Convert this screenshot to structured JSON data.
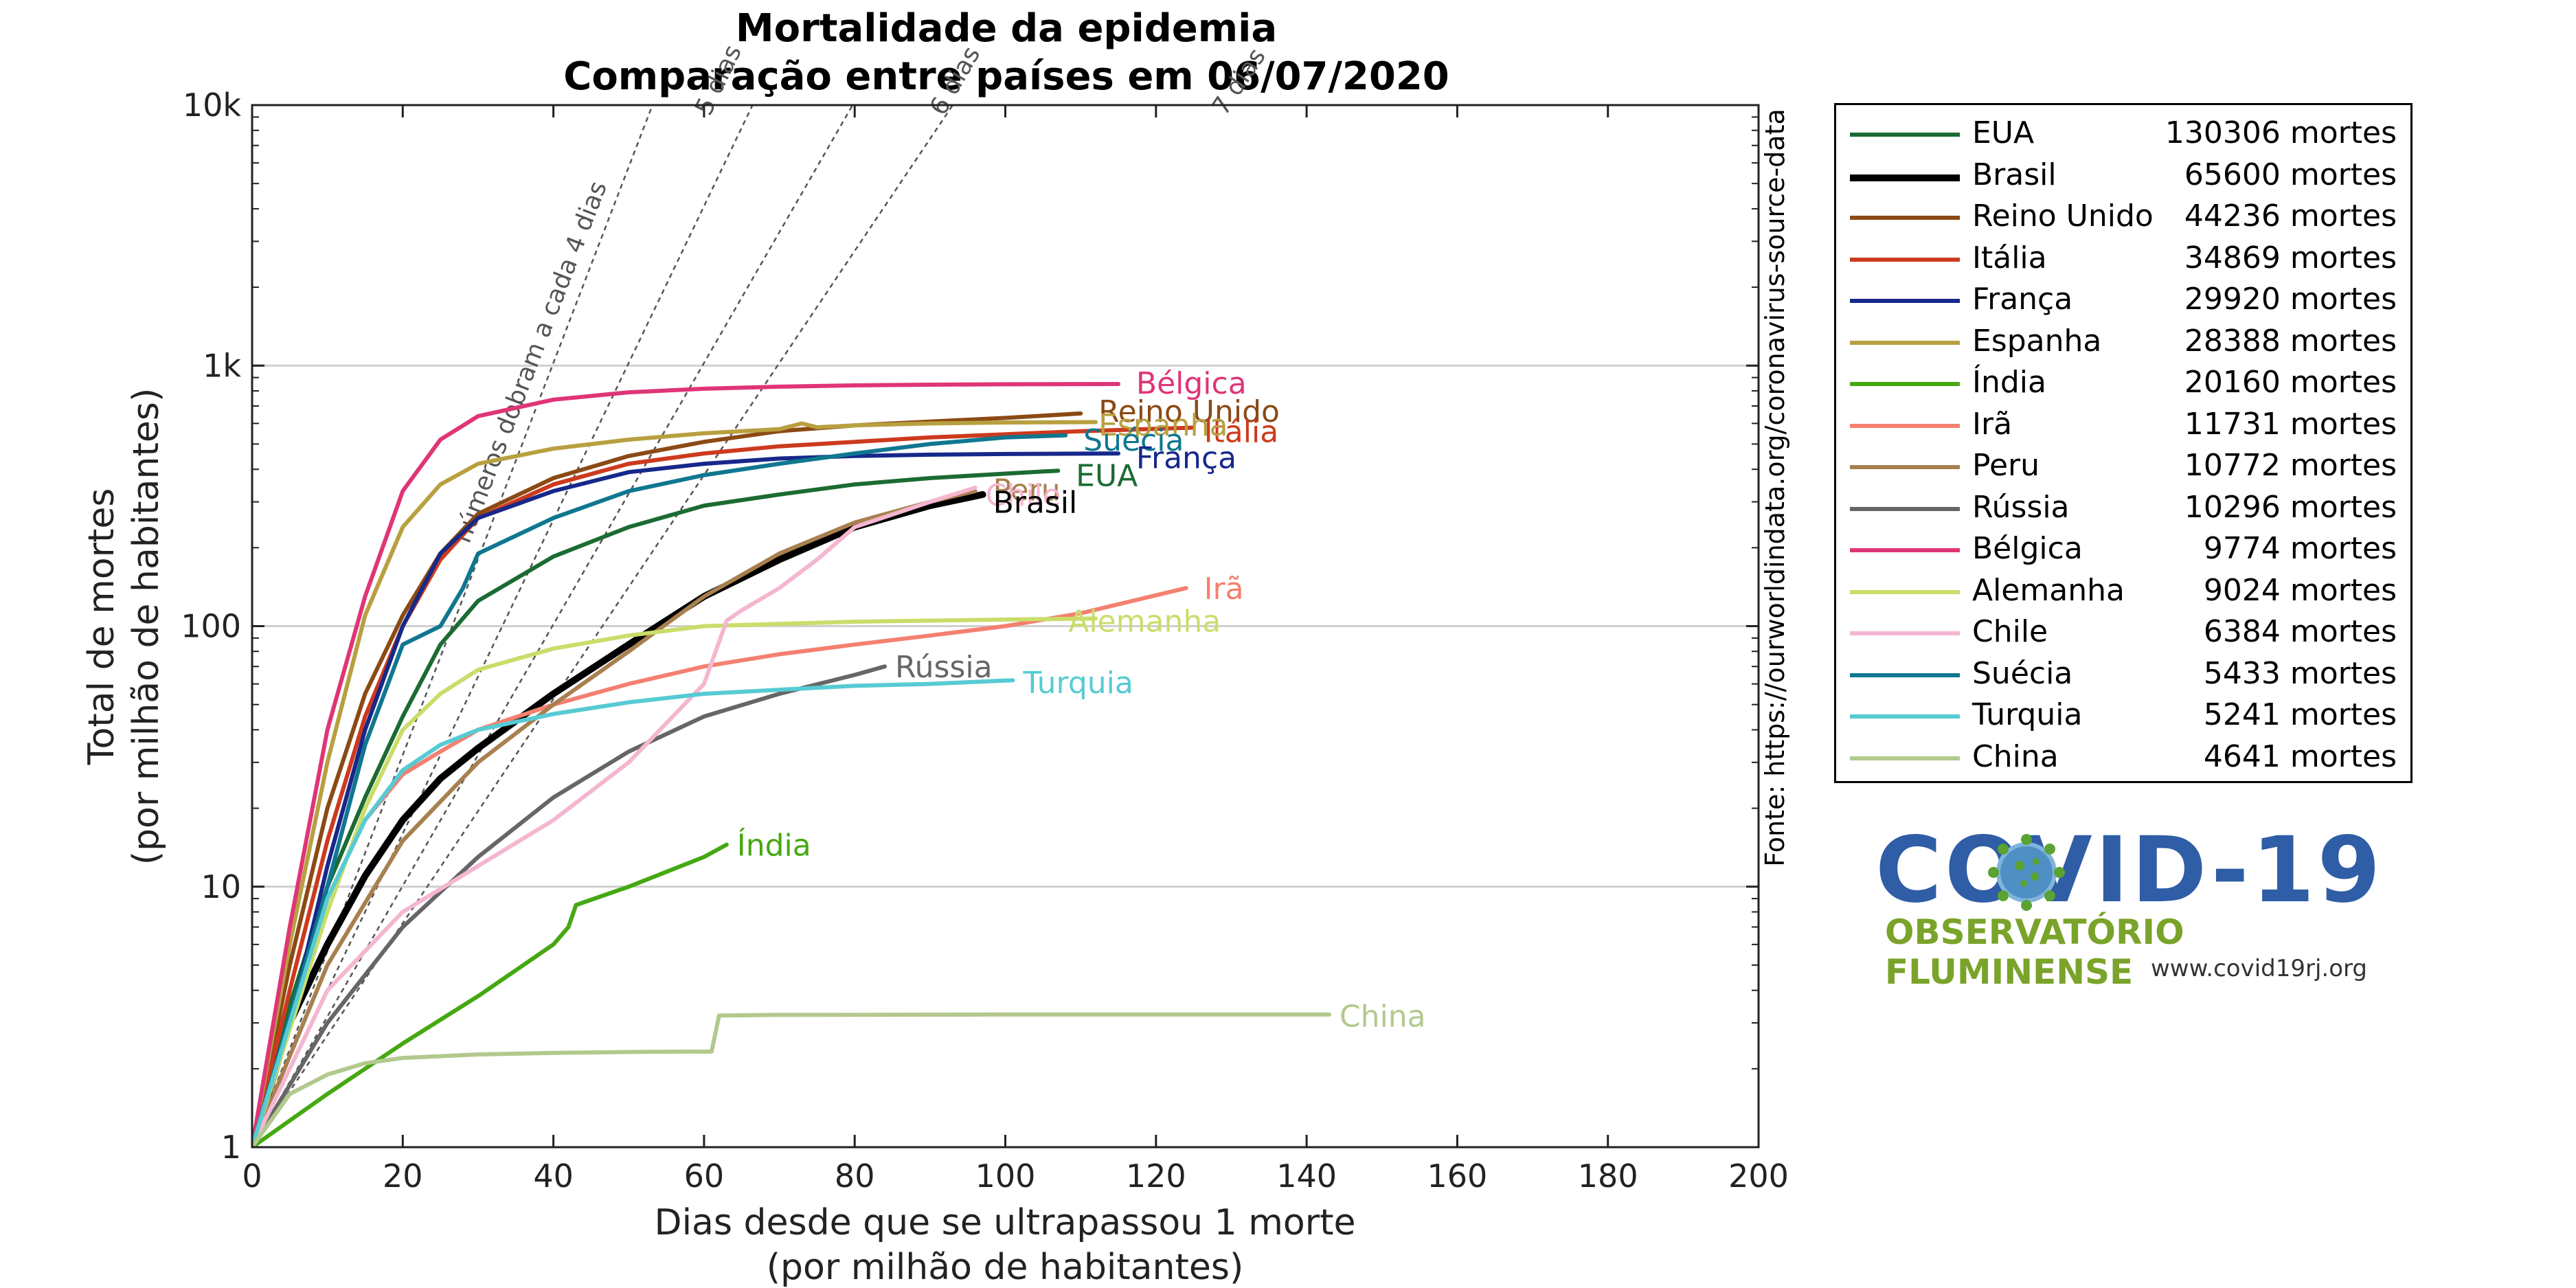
{
  "chart_data": {
    "type": "line",
    "title": "Mortalidade da epidemia",
    "subtitle": "Comparação entre países em 06/07/2020",
    "xlabel": "Dias desde que se ultrapassou 1 morte",
    "xlabel2": "(por milhão de habitantes)",
    "ylabel": "Total de mortes",
    "ylabel2": "(por milhão de habitantes)",
    "source": "Fonte: https://ourworldindata.org/coronavirus-source-data",
    "xlim": [
      0,
      200
    ],
    "ylim": [
      1,
      10000
    ],
    "yscale": "log",
    "xticks": [
      "0",
      "20",
      "40",
      "60",
      "80",
      "100",
      "120",
      "140",
      "160",
      "180",
      "200"
    ],
    "yticks": [
      {
        "value": 1,
        "label": "1"
      },
      {
        "value": 10,
        "label": "10"
      },
      {
        "value": 100,
        "label": "100"
      },
      {
        "value": 1000,
        "label": "1k"
      },
      {
        "value": 10000,
        "label": "10k"
      }
    ],
    "grid": "horizontal",
    "legend_position": "outside-right",
    "doubling_lines": [
      {
        "days": 4,
        "label": "números dobram a cada 4 dias"
      },
      {
        "days": 5,
        "label": "5 dias"
      },
      {
        "days": 6,
        "label": "6 dias"
      },
      {
        "days": 7,
        "label": "7 dias"
      }
    ],
    "series": [
      {
        "name": "EUA",
        "deaths": "130306 mortes",
        "color": "#1b6b32",
        "width": 6,
        "points": [
          [
            0,
            1
          ],
          [
            5,
            3.5
          ],
          [
            10,
            10
          ],
          [
            15,
            22
          ],
          [
            20,
            45
          ],
          [
            25,
            85
          ],
          [
            30,
            125
          ],
          [
            40,
            185
          ],
          [
            50,
            240
          ],
          [
            60,
            290
          ],
          [
            70,
            320
          ],
          [
            80,
            350
          ],
          [
            90,
            370
          ],
          [
            100,
            385
          ],
          [
            107,
            395
          ]
        ]
      },
      {
        "name": "Brasil",
        "deaths": "65600 mortes",
        "color": "#000000",
        "width": 10,
        "points": [
          [
            0,
            1
          ],
          [
            5,
            3
          ],
          [
            10,
            6
          ],
          [
            15,
            11
          ],
          [
            20,
            18
          ],
          [
            25,
            26
          ],
          [
            30,
            34
          ],
          [
            40,
            55
          ],
          [
            50,
            85
          ],
          [
            60,
            130
          ],
          [
            70,
            180
          ],
          [
            80,
            240
          ],
          [
            90,
            290
          ],
          [
            97,
            320
          ]
        ]
      },
      {
        "name": "Reino Unido",
        "deaths": "44236 mortes",
        "color": "#8b4a14",
        "width": 6,
        "points": [
          [
            0,
            1
          ],
          [
            5,
            5
          ],
          [
            10,
            20
          ],
          [
            15,
            55
          ],
          [
            20,
            110
          ],
          [
            25,
            190
          ],
          [
            30,
            270
          ],
          [
            40,
            370
          ],
          [
            50,
            450
          ],
          [
            60,
            510
          ],
          [
            70,
            560
          ],
          [
            80,
            590
          ],
          [
            90,
            610
          ],
          [
            100,
            630
          ],
          [
            110,
            655
          ]
        ]
      },
      {
        "name": "Itália",
        "deaths": "34869 mortes",
        "color": "#cc3a1e",
        "width": 6,
        "points": [
          [
            0,
            1
          ],
          [
            5,
            4
          ],
          [
            10,
            15
          ],
          [
            15,
            45
          ],
          [
            20,
            100
          ],
          [
            25,
            180
          ],
          [
            30,
            260
          ],
          [
            40,
            350
          ],
          [
            50,
            420
          ],
          [
            60,
            460
          ],
          [
            70,
            490
          ],
          [
            80,
            510
          ],
          [
            90,
            530
          ],
          [
            100,
            545
          ],
          [
            110,
            560
          ],
          [
            125,
            578
          ]
        ]
      },
      {
        "name": "França",
        "deaths": "29920 mortes",
        "color": "#16288a",
        "width": 6,
        "points": [
          [
            0,
            1
          ],
          [
            5,
            3
          ],
          [
            10,
            12
          ],
          [
            15,
            40
          ],
          [
            20,
            100
          ],
          [
            25,
            190
          ],
          [
            30,
            260
          ],
          [
            40,
            330
          ],
          [
            50,
            390
          ],
          [
            60,
            420
          ],
          [
            70,
            440
          ],
          [
            80,
            450
          ],
          [
            90,
            455
          ],
          [
            100,
            458
          ],
          [
            115,
            460
          ]
        ]
      },
      {
        "name": "Espanha",
        "deaths": "28388 mortes",
        "color": "#b8a040",
        "width": 6,
        "points": [
          [
            0,
            1
          ],
          [
            5,
            6
          ],
          [
            10,
            30
          ],
          [
            15,
            110
          ],
          [
            20,
            240
          ],
          [
            25,
            350
          ],
          [
            30,
            420
          ],
          [
            40,
            480
          ],
          [
            50,
            520
          ],
          [
            60,
            550
          ],
          [
            70,
            570
          ],
          [
            73,
            600
          ],
          [
            75,
            580
          ],
          [
            80,
            590
          ],
          [
            90,
            600
          ],
          [
            100,
            605
          ],
          [
            112,
            607
          ]
        ]
      },
      {
        "name": "Índia",
        "deaths": "20160 mortes",
        "color": "#45a812",
        "width": 6,
        "points": [
          [
            0,
            1
          ],
          [
            10,
            1.6
          ],
          [
            20,
            2.5
          ],
          [
            30,
            3.8
          ],
          [
            40,
            6
          ],
          [
            42,
            7
          ],
          [
            43,
            8.5
          ],
          [
            50,
            10
          ],
          [
            60,
            13
          ],
          [
            63,
            14.5
          ]
        ]
      },
      {
        "name": "Irã",
        "deaths": "11731 mortes",
        "color": "#f48070",
        "width": 6,
        "points": [
          [
            0,
            1
          ],
          [
            5,
            3
          ],
          [
            10,
            9
          ],
          [
            15,
            18
          ],
          [
            20,
            27
          ],
          [
            25,
            33
          ],
          [
            30,
            40
          ],
          [
            40,
            50
          ],
          [
            50,
            60
          ],
          [
            60,
            70
          ],
          [
            70,
            78
          ],
          [
            80,
            85
          ],
          [
            90,
            92
          ],
          [
            100,
            100
          ],
          [
            110,
            112
          ],
          [
            124,
            140
          ]
        ]
      },
      {
        "name": "Peru",
        "deaths": "10772 mortes",
        "color": "#a8804f",
        "width": 6,
        "points": [
          [
            0,
            1
          ],
          [
            10,
            5
          ],
          [
            20,
            15
          ],
          [
            30,
            30
          ],
          [
            40,
            50
          ],
          [
            50,
            80
          ],
          [
            60,
            130
          ],
          [
            70,
            190
          ],
          [
            80,
            250
          ],
          [
            90,
            300
          ],
          [
            96,
            330
          ]
        ]
      },
      {
        "name": "Rússia",
        "deaths": "10296 mortes",
        "color": "#666666",
        "width": 6,
        "points": [
          [
            0,
            1
          ],
          [
            10,
            3
          ],
          [
            20,
            7
          ],
          [
            30,
            13
          ],
          [
            40,
            22
          ],
          [
            50,
            33
          ],
          [
            60,
            45
          ],
          [
            70,
            55
          ],
          [
            80,
            65
          ],
          [
            84,
            70
          ]
        ]
      },
      {
        "name": "Bélgica",
        "deaths": "9774 mortes",
        "color": "#df3576",
        "width": 6,
        "points": [
          [
            0,
            1
          ],
          [
            5,
            7
          ],
          [
            10,
            40
          ],
          [
            15,
            130
          ],
          [
            20,
            330
          ],
          [
            25,
            520
          ],
          [
            30,
            640
          ],
          [
            40,
            740
          ],
          [
            50,
            790
          ],
          [
            60,
            815
          ],
          [
            70,
            830
          ],
          [
            80,
            840
          ],
          [
            90,
            845
          ],
          [
            100,
            848
          ],
          [
            115,
            850
          ]
        ]
      },
      {
        "name": "Alemanha",
        "deaths": "9024 mortes",
        "color": "#cadd6a",
        "width": 6,
        "points": [
          [
            0,
            1
          ],
          [
            10,
            8
          ],
          [
            15,
            20
          ],
          [
            20,
            40
          ],
          [
            25,
            55
          ],
          [
            30,
            68
          ],
          [
            40,
            82
          ],
          [
            50,
            92
          ],
          [
            60,
            100
          ],
          [
            70,
            102
          ],
          [
            80,
            104
          ],
          [
            100,
            106
          ],
          [
            112,
            107
          ]
        ]
      },
      {
        "name": "Chile",
        "deaths": "6384 mortes",
        "color": "#f4b6d0",
        "width": 6,
        "points": [
          [
            0,
            1
          ],
          [
            10,
            4
          ],
          [
            20,
            8
          ],
          [
            30,
            12
          ],
          [
            40,
            18
          ],
          [
            50,
            30
          ],
          [
            60,
            60
          ],
          [
            63,
            105
          ],
          [
            65,
            115
          ],
          [
            70,
            140
          ],
          [
            75,
            180
          ],
          [
            80,
            240
          ],
          [
            90,
            300
          ],
          [
            96,
            340
          ]
        ]
      },
      {
        "name": "Suécia",
        "deaths": "5433 mortes",
        "color": "#0f778f",
        "width": 6,
        "points": [
          [
            0,
            1
          ],
          [
            10,
            10
          ],
          [
            15,
            35
          ],
          [
            20,
            85
          ],
          [
            25,
            100
          ],
          [
            28,
            140
          ],
          [
            30,
            190
          ],
          [
            40,
            260
          ],
          [
            50,
            330
          ],
          [
            60,
            380
          ],
          [
            70,
            420
          ],
          [
            80,
            460
          ],
          [
            90,
            500
          ],
          [
            100,
            530
          ],
          [
            108,
            540
          ]
        ]
      },
      {
        "name": "Turquia",
        "deaths": "5241 mortes",
        "color": "#56cbd4",
        "width": 6,
        "points": [
          [
            0,
            1
          ],
          [
            5,
            3
          ],
          [
            10,
            9
          ],
          [
            15,
            18
          ],
          [
            20,
            28
          ],
          [
            25,
            35
          ],
          [
            30,
            40
          ],
          [
            40,
            46
          ],
          [
            50,
            51
          ],
          [
            60,
            55
          ],
          [
            70,
            57
          ],
          [
            80,
            59
          ],
          [
            90,
            60
          ],
          [
            101,
            62
          ]
        ]
      },
      {
        "name": "China",
        "deaths": "4641 mortes",
        "color": "#b2c98d",
        "width": 6,
        "points": [
          [
            0,
            1
          ],
          [
            5,
            1.6
          ],
          [
            10,
            1.9
          ],
          [
            15,
            2.1
          ],
          [
            20,
            2.2
          ],
          [
            30,
            2.27
          ],
          [
            40,
            2.3
          ],
          [
            50,
            2.32
          ],
          [
            61,
            2.33
          ],
          [
            62,
            3.2
          ],
          [
            70,
            3.22
          ],
          [
            100,
            3.23
          ],
          [
            143,
            3.23
          ]
        ]
      }
    ],
    "end_labels": [
      {
        "text": "Bélgica",
        "x": 117,
        "y": 860,
        "color": "#df3576"
      },
      {
        "text": "Reino Unido",
        "x": 112,
        "y": 670,
        "color": "#8b4a14"
      },
      {
        "text": "Itália",
        "x": 126,
        "y": 560,
        "color": "#cc3a1e"
      },
      {
        "text": "Espanha",
        "x": 112,
        "y": 595,
        "color": "#b8a040"
      },
      {
        "text": "Suécia",
        "x": 110,
        "y": 520,
        "color": "#0f778f"
      },
      {
        "text": "França",
        "x": 117,
        "y": 445,
        "color": "#16288a"
      },
      {
        "text": "EUA",
        "x": 109,
        "y": 380,
        "color": "#1b6b32"
      },
      {
        "text": "Peru",
        "x": 98,
        "y": 335,
        "color": "#a8804f"
      },
      {
        "text": "Chile",
        "x": 97,
        "y": 320,
        "color": "#f4b6d0"
      },
      {
        "text": "Brasil",
        "x": 98,
        "y": 300,
        "color": "#000000"
      },
      {
        "text": "Irã",
        "x": 126,
        "y": 140,
        "color": "#f48070"
      },
      {
        "text": "Alemanha",
        "x": 108,
        "y": 105,
        "color": "#cadd6a"
      },
      {
        "text": "Rússia",
        "x": 85,
        "y": 70,
        "color": "#666666"
      },
      {
        "text": "Turquia",
        "x": 102,
        "y": 61,
        "color": "#56cbd4"
      },
      {
        "text": "Índia",
        "x": 64,
        "y": 14.5,
        "color": "#45a812"
      },
      {
        "text": "China",
        "x": 144,
        "y": 3.2,
        "color": "#b2c98d"
      }
    ]
  },
  "logo": {
    "title": "COVID-19",
    "subtitle": "OBSERVATÓRIO FLUMINENSE",
    "url": "www.covid19rj.org",
    "title_color": "#2f5da6",
    "subtitle_color": "#7aa32a"
  }
}
